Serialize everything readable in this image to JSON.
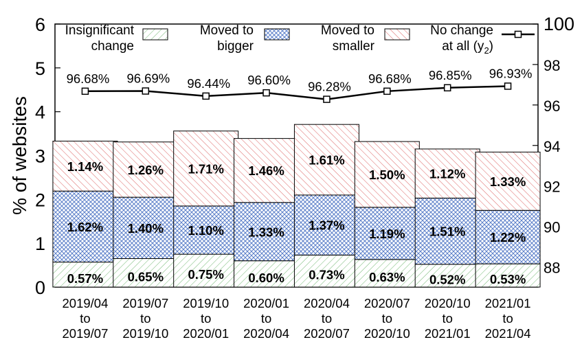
{
  "chart_data": {
    "type": "bar",
    "stacked": true,
    "title": "",
    "categories": [
      [
        "2019/04",
        "to",
        "2019/07"
      ],
      [
        "2019/07",
        "to",
        "2019/10"
      ],
      [
        "2019/10",
        "to",
        "2020/01"
      ],
      [
        "2020/01",
        "to",
        "2020/04"
      ],
      [
        "2020/04",
        "to",
        "2020/07"
      ],
      [
        "2020/07",
        "to",
        "2020/10"
      ],
      [
        "2020/10",
        "to",
        "2021/01"
      ],
      [
        "2021/01",
        "to",
        "2021/04"
      ]
    ],
    "ylabel": "% of websites",
    "ylim": [
      0,
      6
    ],
    "yticks": [
      0,
      1,
      2,
      3,
      4,
      5,
      6
    ],
    "y2lim": [
      87,
      100
    ],
    "y2ticks": [
      88,
      90,
      92,
      94,
      96,
      98,
      100
    ],
    "series": [
      {
        "name": "Insignificant change",
        "values": [
          0.57,
          0.65,
          0.75,
          0.6,
          0.73,
          0.63,
          0.52,
          0.53
        ],
        "labels": [
          "0.57%",
          "0.65%",
          "0.75%",
          "0.60%",
          "0.73%",
          "0.63%",
          "0.52%",
          "0.53%"
        ],
        "color": "#7fbf7f",
        "pattern": "diagonal-lines"
      },
      {
        "name": "Moved to bigger",
        "values": [
          1.62,
          1.4,
          1.1,
          1.33,
          1.37,
          1.19,
          1.51,
          1.22
        ],
        "labels": [
          "1.62%",
          "1.40%",
          "1.10%",
          "1.33%",
          "1.37%",
          "1.19%",
          "1.51%",
          "1.22%"
        ],
        "color": "#5b7fc9",
        "pattern": "crosshatch"
      },
      {
        "name": "Moved to smaller",
        "values": [
          1.14,
          1.26,
          1.71,
          1.46,
          1.61,
          1.5,
          1.12,
          1.33
        ],
        "labels": [
          "1.14%",
          "1.26%",
          "1.71%",
          "1.46%",
          "1.61%",
          "1.50%",
          "1.12%",
          "1.33%"
        ],
        "color": "#e07070",
        "pattern": "diagonal-lines"
      }
    ],
    "line_series": {
      "name": "No change at all (y2)",
      "axis": "y2",
      "values": [
        96.68,
        96.69,
        96.44,
        96.6,
        96.28,
        96.68,
        96.85,
        96.93
      ],
      "labels": [
        "96.68%",
        "96.69%",
        "96.44%",
        "96.60%",
        "96.28%",
        "96.68%",
        "96.85%",
        "96.93%"
      ],
      "color": "#000000",
      "marker": "square"
    },
    "legend_placement": "top",
    "grid": false
  }
}
